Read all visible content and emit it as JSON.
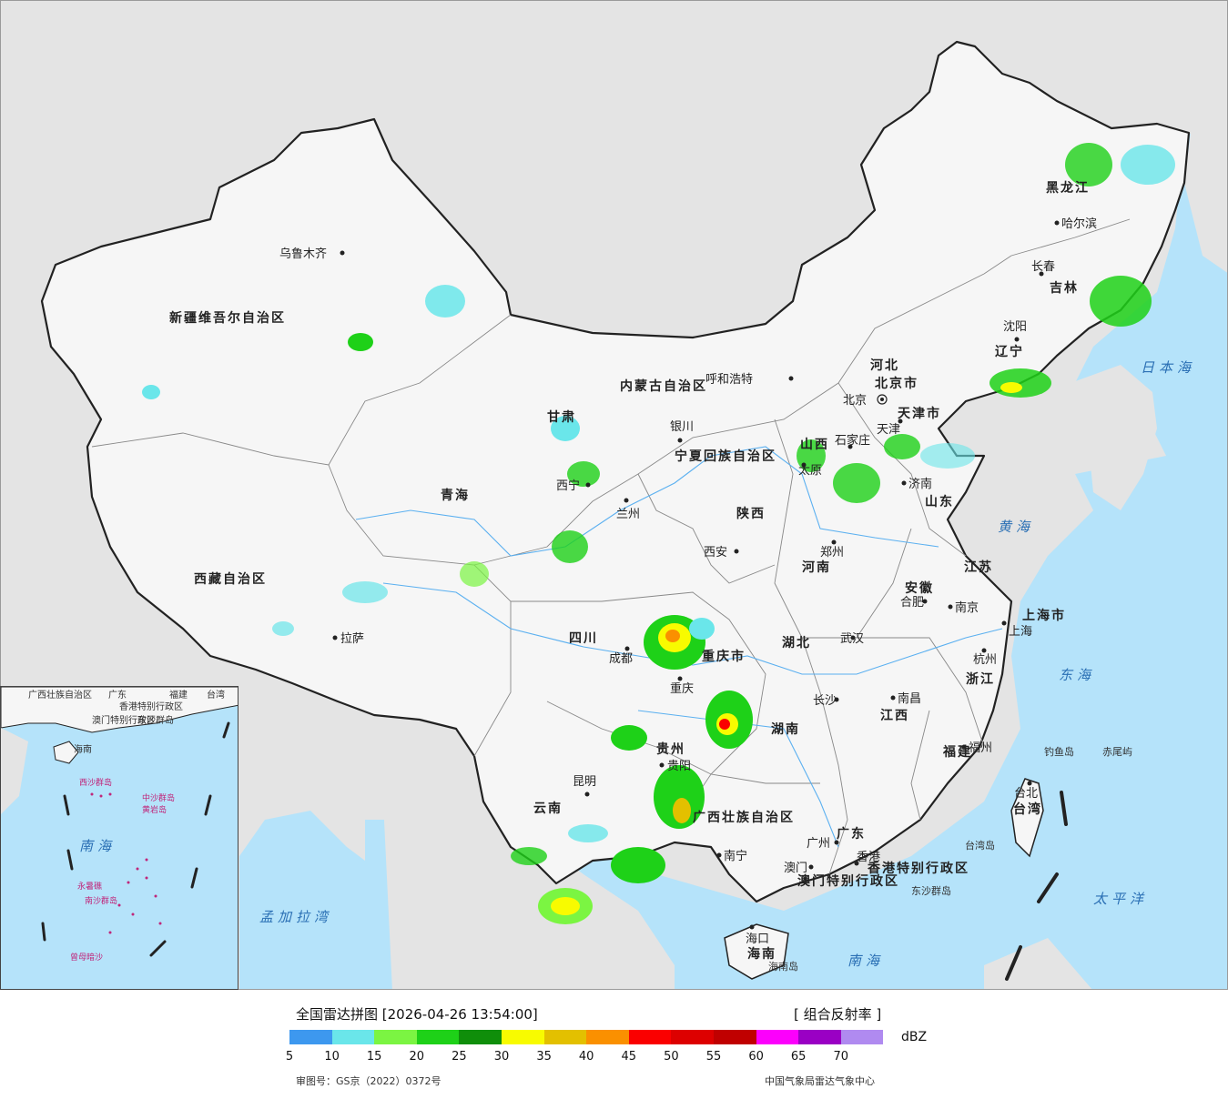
{
  "map": {
    "provinces": [
      {
        "label": "新疆维吾尔自治区"
      },
      {
        "label": "西藏自治区"
      },
      {
        "label": "青海"
      },
      {
        "label": "内蒙古自治区"
      },
      {
        "label": "黑龙江"
      },
      {
        "label": "吉林"
      },
      {
        "label": "辽宁"
      },
      {
        "label": "甘肃"
      },
      {
        "label": "宁夏回族自治区"
      },
      {
        "label": "陕西"
      },
      {
        "label": "山西"
      },
      {
        "label": "河北"
      },
      {
        "label": "山东"
      },
      {
        "label": "河南"
      },
      {
        "label": "四川"
      },
      {
        "label": "重庆市"
      },
      {
        "label": "湖北"
      },
      {
        "label": "安徽"
      },
      {
        "label": "江苏"
      },
      {
        "label": "上海市"
      },
      {
        "label": "浙江"
      },
      {
        "label": "江西"
      },
      {
        "label": "湖南"
      },
      {
        "label": "贵州"
      },
      {
        "label": "云南"
      },
      {
        "label": "广西壮族自治区"
      },
      {
        "label": "广东"
      },
      {
        "label": "福建"
      },
      {
        "label": "台湾"
      },
      {
        "label": "海南"
      },
      {
        "label": "北京市"
      },
      {
        "label": "天津市"
      },
      {
        "label": "香港特别行政区"
      },
      {
        "label": "澳门特别行政区"
      }
    ],
    "cities": [
      "乌鲁木齐",
      "拉萨",
      "西宁",
      "兰州",
      "银川",
      "呼和浩特",
      "北京",
      "天津",
      "石家庄",
      "太原",
      "济南",
      "郑州",
      "西安",
      "成都",
      "重庆",
      "武汉",
      "合肥",
      "南京",
      "上海",
      "杭州",
      "长沙",
      "南昌",
      "福州",
      "贵阳",
      "昆明",
      "南宁",
      "广州",
      "澳门",
      "香港",
      "海口",
      "哈尔滨",
      "长春",
      "沈阳",
      "台北"
    ],
    "seas": [
      "日本海",
      "黄海",
      "东海",
      "太平洋",
      "南海",
      "孟加拉湾"
    ],
    "islands": [
      "钓鱼岛",
      "赤尾屿",
      "台湾岛",
      "东沙群岛",
      "海南岛"
    ],
    "inset": {
      "labels": [
        "广西壮族自治区",
        "广东",
        "福建",
        "台湾",
        "香港特别行政区",
        "澳门特别行政区",
        "海南",
        "东沙群岛",
        "西沙群岛",
        "中沙群岛",
        "黄岩岛",
        "南海",
        "南沙群岛",
        "永暑礁",
        "曾母暗沙"
      ]
    }
  },
  "legend": {
    "title": "全国雷达拼图 [2026-04-26 13:54:00]",
    "product": "[ 组合反射率 ]",
    "unit": "dBZ",
    "scale": [
      {
        "value": "5",
        "color": "#3d98ef"
      },
      {
        "value": "10",
        "color": "#6ae6ea"
      },
      {
        "value": "15",
        "color": "#7bf542"
      },
      {
        "value": "20",
        "color": "#1ed118"
      },
      {
        "value": "25",
        "color": "#0f8e0a"
      },
      {
        "value": "30",
        "color": "#f8fb00"
      },
      {
        "value": "35",
        "color": "#e3c000"
      },
      {
        "value": "40",
        "color": "#fa9000"
      },
      {
        "value": "45",
        "color": "#fa0000"
      },
      {
        "value": "50",
        "color": "#dd0000"
      },
      {
        "value": "55",
        "color": "#c00000"
      },
      {
        "value": "60",
        "color": "#fc00fc"
      },
      {
        "value": "65",
        "color": "#9a00c4"
      },
      {
        "value": "70",
        "color": "#b08af0"
      }
    ],
    "approval": "审图号：GS京（2022）0372号",
    "source": "中国气象局雷达气象中心"
  }
}
